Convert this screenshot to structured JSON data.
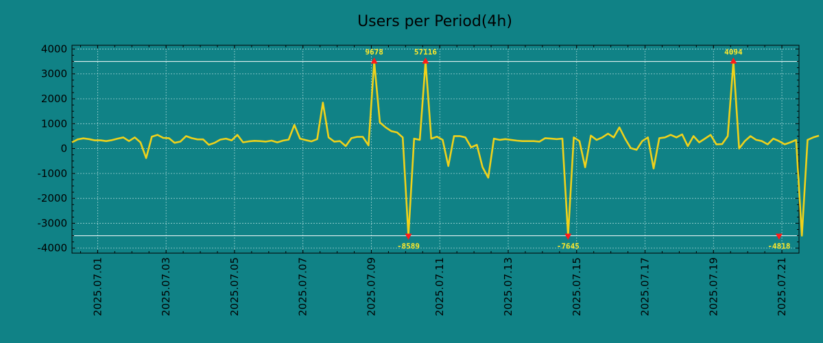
{
  "chart_data": {
    "type": "line",
    "title": "Users per Period(4h)",
    "xlabel": "",
    "ylabel": "",
    "ylim": [
      -4200,
      4150
    ],
    "yticks": [
      4000,
      3000,
      2000,
      1000,
      0,
      -1000,
      -2000,
      -3000,
      -4000
    ],
    "ytick_labels": [
      "4000",
      "3000",
      "2000",
      "1000",
      "0",
      "-1000",
      "-2000",
      "-3000",
      "-4000"
    ],
    "x_index_range": [
      0,
      127.5
    ],
    "xtick_index": [
      4.5,
      16.5,
      28.5,
      40.5,
      52.5,
      64.5,
      76.5,
      88.5,
      100.5,
      112.5,
      124.5
    ],
    "xtick_labels": [
      "2025.07.01",
      "2025.07.03",
      "2025.07.05",
      "2025.07.07",
      "2025.07.09",
      "2025.07.11",
      "2025.07.13",
      "2025.07.15",
      "2025.07.17",
      "2025.07.19",
      "2025.07.21"
    ],
    "clip_lines": [
      3500,
      -3500
    ],
    "grid": true,
    "line_color": "#f0d21a",
    "marker_color": "#ff1a1a",
    "annotation_color": "#ffe92a",
    "background": "#108286",
    "series": [
      {
        "name": "users",
        "values": [
          250,
          370,
          410,
          380,
          330,
          330,
          300,
          340,
          400,
          450,
          300,
          450,
          250,
          -380,
          480,
          550,
          430,
          420,
          230,
          280,
          500,
          420,
          370,
          370,
          150,
          230,
          360,
          400,
          330,
          550,
          250,
          290,
          310,
          300,
          280,
          320,
          250,
          320,
          360,
          950,
          400,
          340,
          290,
          380,
          1850,
          450,
          280,
          300,
          100,
          420,
          470,
          470,
          130,
          3500,
          1050,
          850,
          700,
          650,
          450,
          -3500,
          400,
          350,
          3500,
          400,
          480,
          350,
          -700,
          500,
          500,
          450,
          50,
          150,
          -750,
          -1170,
          400,
          350,
          380,
          350,
          320,
          300,
          300,
          300,
          280,
          420,
          400,
          380,
          400,
          -3500,
          450,
          300,
          -750,
          520,
          350,
          450,
          600,
          450,
          850,
          400,
          20,
          -50,
          300,
          450,
          -800,
          420,
          450,
          550,
          450,
          570,
          100,
          500,
          250,
          400,
          550,
          170,
          180,
          500,
          3500,
          0,
          300,
          500,
          350,
          300,
          170,
          400,
          300,
          170,
          250,
          350,
          -3500,
          350,
          450,
          520
        ]
      }
    ],
    "annotations": [
      {
        "index": 53,
        "value": 3500,
        "label": "9678",
        "position": "above"
      },
      {
        "index": 59,
        "value": -3500,
        "label": "-8589",
        "position": "below"
      },
      {
        "index": 62,
        "value": 3500,
        "label": "57116",
        "position": "above"
      },
      {
        "index": 87,
        "value": -3500,
        "label": "-7645",
        "position": "below"
      },
      {
        "index": 116,
        "value": 3500,
        "label": "4094",
        "position": "above"
      },
      {
        "index": 124,
        "value": -3500,
        "label": "-4818",
        "position": "below"
      }
    ]
  }
}
